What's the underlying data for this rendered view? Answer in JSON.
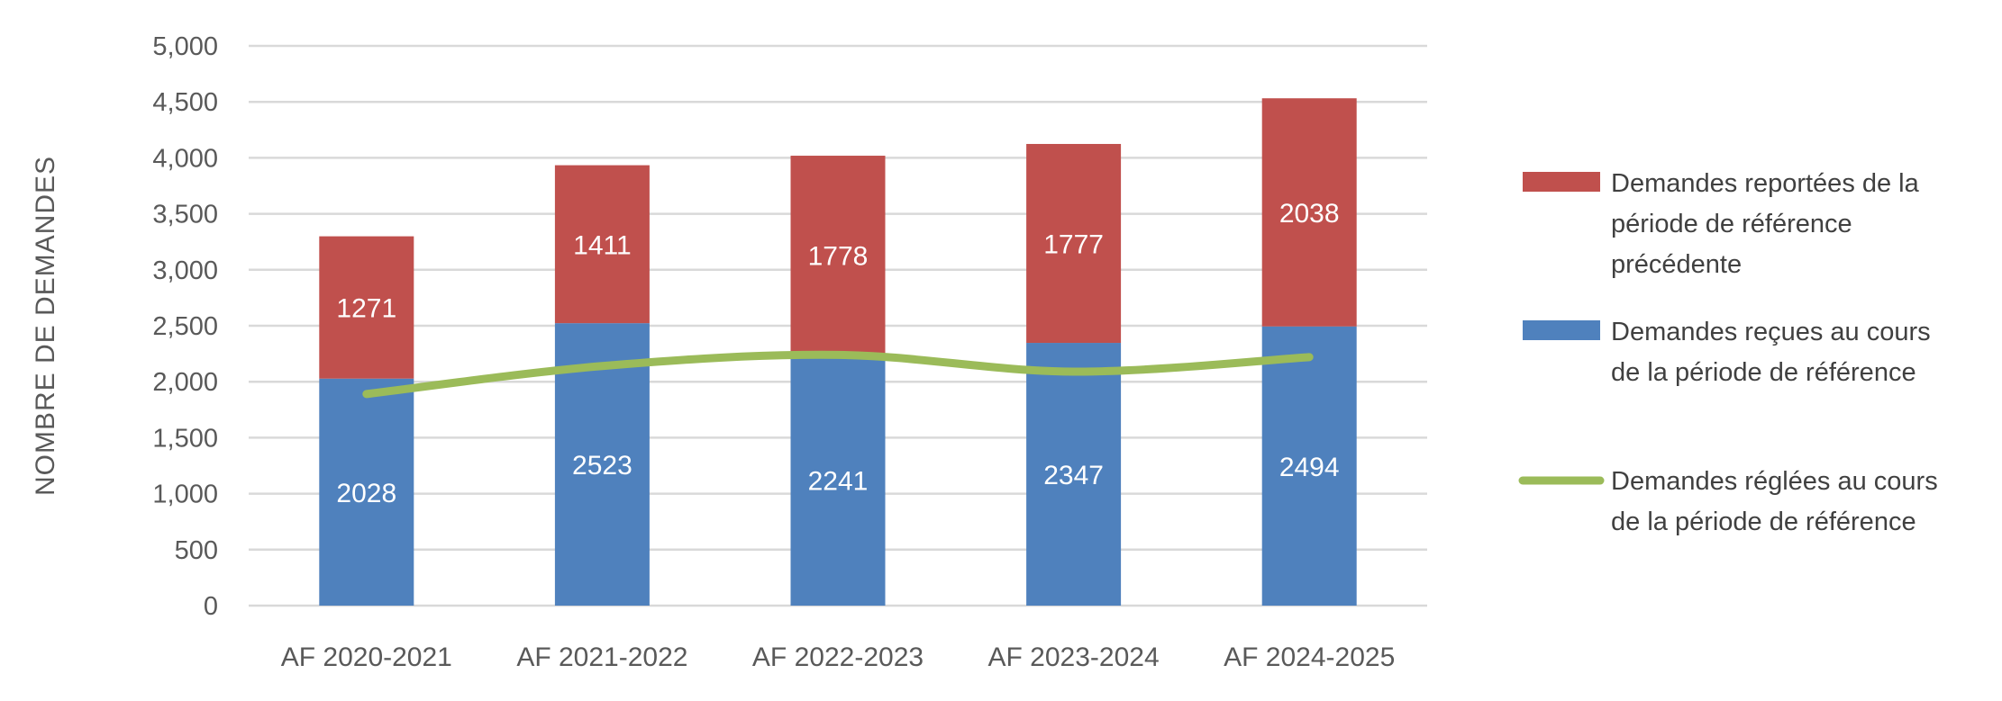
{
  "chart_data": {
    "type": "bar",
    "stacked": true,
    "title": "",
    "xlabel": "",
    "ylabel": "NOMBRE DE DEMANDES",
    "ylim": [
      0,
      5000
    ],
    "yticks": [
      0,
      500,
      1000,
      1500,
      2000,
      2500,
      3000,
      3500,
      4000,
      4500,
      5000
    ],
    "ytick_labels": [
      "0",
      "500",
      "1,000",
      "1,500",
      "2,000",
      "2,500",
      "3,000",
      "3,500",
      "4,000",
      "4,500",
      "5,000"
    ],
    "grid": true,
    "legend_position": "right",
    "categories": [
      "AF 2020-2021",
      "AF 2021-2022",
      "AF 2022-2023",
      "AF 2023-2024",
      "AF 2024-2025"
    ],
    "series": [
      {
        "name": "Demandes reçues au cours de la période de référence",
        "type": "bar",
        "color": "#4f81bd",
        "values": [
          2028,
          2523,
          2241,
          2347,
          2494
        ],
        "legend_lines": [
          "Demandes reçues au cours",
          "de la période de référence"
        ]
      },
      {
        "name": "Demandes reportées de la période de référence précédente",
        "type": "bar",
        "color": "#c0504d",
        "values": [
          1271,
          1411,
          1778,
          1777,
          2038
        ],
        "legend_lines": [
          "Demandes reportées de la",
          "période de référence",
          "précédente"
        ]
      },
      {
        "name": "Demandes réglées au cours de la période de référence",
        "type": "line",
        "smooth": true,
        "color": "#9bbb59",
        "values": [
          1890,
          2140,
          2240,
          2090,
          2220
        ],
        "legend_lines": [
          "Demandes réglées au cours",
          "de la période de référence"
        ]
      }
    ]
  }
}
